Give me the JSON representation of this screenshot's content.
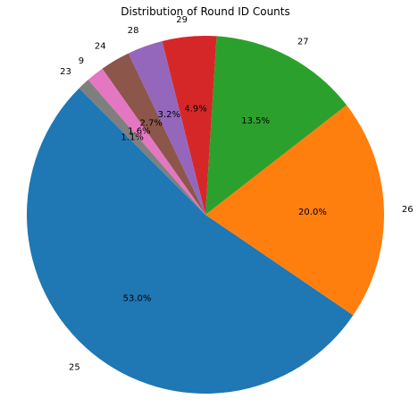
{
  "chart_data": {
    "type": "pie",
    "title": "Distribution of Round ID Counts",
    "start_angle_deg": 135,
    "direction": "counterclockwise",
    "slices": [
      {
        "label": "25",
        "pct": 53.0,
        "pct_label": "53.0%",
        "color": "#1f77b4"
      },
      {
        "label": "26",
        "pct": 20.0,
        "pct_label": "20.0%",
        "color": "#ff7f0e"
      },
      {
        "label": "27",
        "pct": 13.5,
        "pct_label": "13.5%",
        "color": "#2ca02c"
      },
      {
        "label": "29",
        "pct": 4.9,
        "pct_label": "4.9%",
        "color": "#d62728"
      },
      {
        "label": "28",
        "pct": 3.2,
        "pct_label": "3.2%",
        "color": "#9467bd"
      },
      {
        "label": "24",
        "pct": 2.7,
        "pct_label": "2.7%",
        "color": "#8c564b"
      },
      {
        "label": "9",
        "pct": 1.6,
        "pct_label": "1.6%",
        "color": "#e377c2"
      },
      {
        "label": "23",
        "pct": 1.1,
        "pct_label": "1.1%",
        "color": "#7f7f7f"
      }
    ]
  }
}
